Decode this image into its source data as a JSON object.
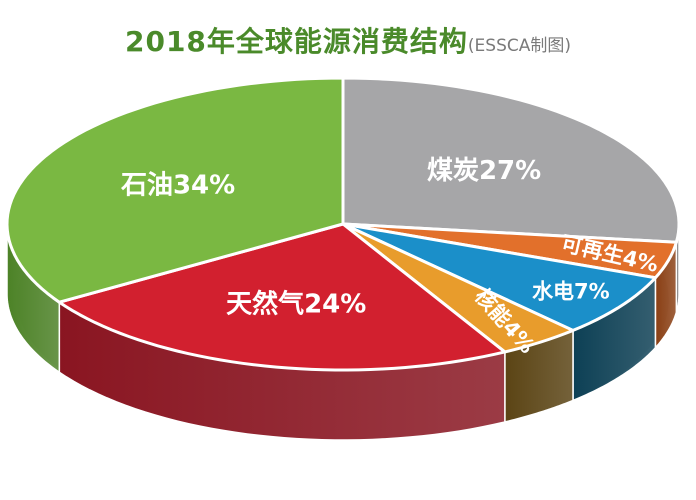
{
  "title": "2018年全球能源消费结构",
  "subtitle": "(ESSCA制图)",
  "chart_data": {
    "type": "pie",
    "title": "2018年全球能源消费结构",
    "subtitle": "(ESSCA制图)",
    "slices": [
      {
        "label": "煤炭27%",
        "name": "煤炭",
        "value": 27,
        "color": "#a6a6a8",
        "side": "#6e6e70"
      },
      {
        "label": "可再生4%",
        "name": "可再生",
        "value": 4,
        "color": "#e2702b",
        "side": "#8a3f14"
      },
      {
        "label": "水电7%",
        "name": "水电",
        "value": 7,
        "color": "#1b8fc9",
        "side": "#0d4055"
      },
      {
        "label": "核能4%",
        "name": "核能",
        "value": 4,
        "color": "#e89c2c",
        "side": "#5b4414"
      },
      {
        "label": "天然气24%",
        "name": "天然气",
        "value": 24,
        "color": "#d2202f",
        "side": "#8a1521"
      },
      {
        "label": "石油34%",
        "name": "石油",
        "value": 34,
        "color": "#7ab842",
        "side": "#4c8226"
      }
    ]
  }
}
